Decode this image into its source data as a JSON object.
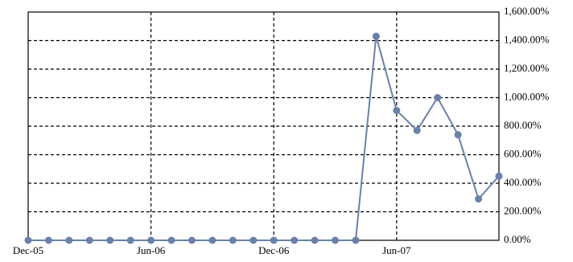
{
  "chart_data": {
    "type": "line",
    "categories": [
      "Dec-05",
      null,
      null,
      null,
      null,
      null,
      "Jun-06",
      null,
      null,
      null,
      null,
      null,
      "Dec-06",
      null,
      null,
      null,
      null,
      null,
      "Jun-07",
      null,
      null,
      null,
      null,
      null
    ],
    "series": [
      {
        "color": "#6a81a9",
        "values": [
          0,
          0,
          0,
          0,
          0,
          0,
          0,
          0,
          0,
          0,
          0,
          0,
          0,
          0,
          0,
          0,
          0,
          1430,
          910,
          770,
          1000,
          740,
          290,
          450
        ]
      }
    ],
    "ylim": [
      0,
      1600
    ],
    "yticks": [
      {
        "value": 0,
        "label": "0.00%"
      },
      {
        "value": 200,
        "label": "200.00%"
      },
      {
        "value": 400,
        "label": "400.00%"
      },
      {
        "value": 600,
        "label": "600.00%"
      },
      {
        "value": 800,
        "label": "800.00%"
      },
      {
        "value": 1000,
        "label": "1,000.00%"
      },
      {
        "value": 1200,
        "label": "1,200.00%"
      },
      {
        "value": 1400,
        "label": "1,400.00%"
      },
      {
        "value": 1600,
        "label": "1,600.00%"
      }
    ],
    "grid": true
  }
}
